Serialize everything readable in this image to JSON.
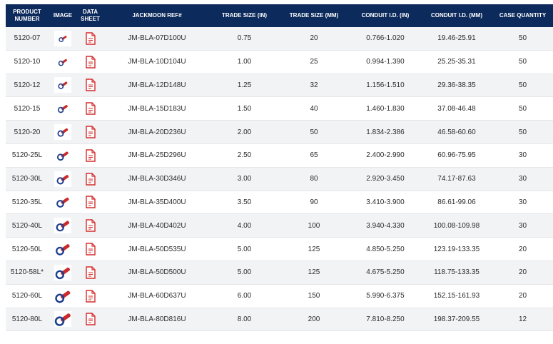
{
  "table": {
    "headers": [
      "PRODUCT NUMBER",
      "IMAGE",
      "DATA SHEET",
      "JACKMOON REF#",
      "TRADE SIZE (IN)",
      "TRADE SIZE (MM)",
      "CONDUIT I.D. (IN)",
      "CONDUIT I.D. (MM)",
      "CASE QUANTITY"
    ],
    "rows": [
      {
        "product": "5120-07",
        "ref": "JM-BLA-07D100U",
        "trade_in": "0.75",
        "trade_mm": "20",
        "id_in": "0.766-1.020",
        "id_mm": "19.46-25.91",
        "qty": "50"
      },
      {
        "product": "5120-10",
        "ref": "JM-BLA-10D104U",
        "trade_in": "1.00",
        "trade_mm": "25",
        "id_in": "0.994-1.390",
        "id_mm": "25.25-35.31",
        "qty": "50"
      },
      {
        "product": "5120-12",
        "ref": "JM-BLA-12D148U",
        "trade_in": "1.25",
        "trade_mm": "32",
        "id_in": "1.156-1.510",
        "id_mm": "29.36-38.35",
        "qty": "50"
      },
      {
        "product": "5120-15",
        "ref": "JM-BLA-15D183U",
        "trade_in": "1.50",
        "trade_mm": "40",
        "id_in": "1.460-1.830",
        "id_mm": "37.08-46.48",
        "qty": "50"
      },
      {
        "product": "5120-20",
        "ref": "JM-BLA-20D236U",
        "trade_in": "2.00",
        "trade_mm": "50",
        "id_in": "1.834-2.386",
        "id_mm": "46.58-60.60",
        "qty": "50"
      },
      {
        "product": "5120-25L",
        "ref": "JM-BLA-25D296U",
        "trade_in": "2.50",
        "trade_mm": "65",
        "id_in": "2.400-2.990",
        "id_mm": "60.96-75.95",
        "qty": "30"
      },
      {
        "product": "5120-30L",
        "ref": "JM-BLA-30D346U",
        "trade_in": "3.00",
        "trade_mm": "80",
        "id_in": "2.920-3.450",
        "id_mm": "74.17-87.63",
        "qty": "30"
      },
      {
        "product": "5120-35L",
        "ref": "JM-BLA-35D400U",
        "trade_in": "3.50",
        "trade_mm": "90",
        "id_in": "3.410-3.900",
        "id_mm": "86.61-99.06",
        "qty": "30"
      },
      {
        "product": "5120-40L",
        "ref": "JM-BLA-40D402U",
        "trade_in": "4.00",
        "trade_mm": "100",
        "id_in": "3.940-4.330",
        "id_mm": "100.08-109.98",
        "qty": "30"
      },
      {
        "product": "5120-50L",
        "ref": "JM-BLA-50D535U",
        "trade_in": "5.00",
        "trade_mm": "125",
        "id_in": "4.850-5.250",
        "id_mm": "123.19-133.35",
        "qty": "20"
      },
      {
        "product": "5120-58L*",
        "ref": "JM-BLA-50D500U",
        "trade_in": "5.00",
        "trade_mm": "125",
        "id_in": "4.675-5.250",
        "id_mm": "118.75-133.35",
        "qty": "20"
      },
      {
        "product": "5120-60L",
        "ref": "JM-BLA-60D637U",
        "trade_in": "6.00",
        "trade_mm": "150",
        "id_in": "5.990-6.375",
        "id_mm": "152.15-161.93",
        "qty": "20"
      },
      {
        "product": "5120-80L",
        "ref": "JM-BLA-80D816U",
        "trade_in": "8.00",
        "trade_mm": "200",
        "id_in": "7.810-8.250",
        "id_mm": "198.37-209.55",
        "qty": "12"
      }
    ]
  },
  "icons": {
    "image": "product-thumbnail-icon",
    "data_sheet": "pdf-icon"
  },
  "colors": {
    "header_bg": "#0c2a5c",
    "header_text": "#ffffff",
    "row_alt": "#f2f3f5",
    "pdf_red": "#d62d2d",
    "product_blue": "#1d3f8f",
    "product_red": "#cc2a2a"
  }
}
